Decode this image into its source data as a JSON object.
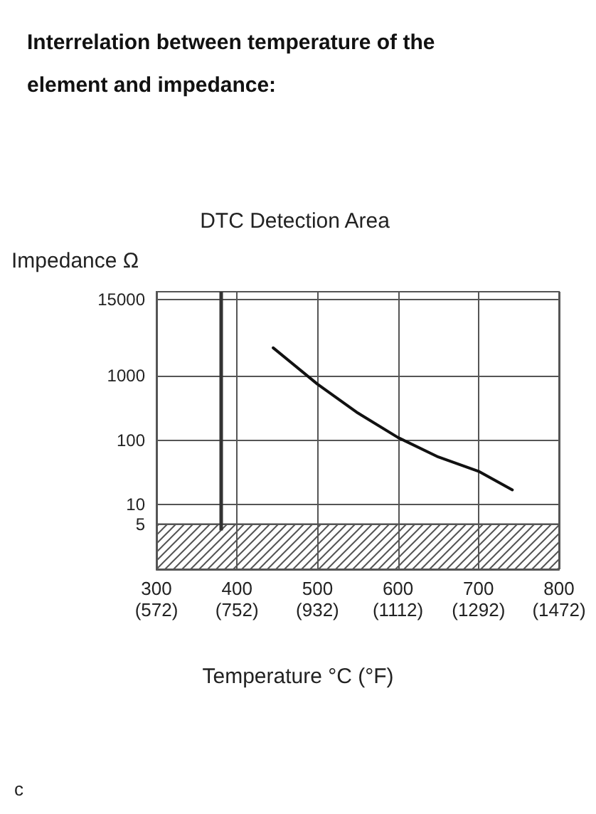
{
  "chart_data": {
    "type": "line",
    "title": "Interrelation between temperature of the element and impedance:",
    "xlabel": "Temperature °C (°F)",
    "ylabel": "Impedance Ω",
    "x": [
      445,
      500,
      550,
      600,
      650,
      700,
      742
    ],
    "series": [
      {
        "color": "#111111",
        "values": [
          2700,
          740,
          265,
          110,
          55,
          33,
          17
        ]
      }
    ],
    "xlim": [
      300,
      800
    ],
    "xticks": [
      300,
      400,
      500,
      600,
      700,
      800
    ],
    "x2lim": [
      572,
      1472
    ],
    "x2ticks": [
      {
        "value": 572,
        "label": "(572)"
      },
      {
        "value": 752,
        "label": "(752)"
      },
      {
        "value": 932,
        "label": "(932)"
      },
      {
        "value": 1112,
        "label": "(1112)"
      },
      {
        "value": 1292,
        "label": "(1292)"
      },
      {
        "value": 1472,
        "label": "(1472)"
      }
    ],
    "ylim": [
      1,
      20000
    ],
    "yticks": [
      5,
      10,
      100,
      1000,
      15000
    ],
    "log": "y",
    "grid": true,
    "marker": "none",
    "line_style": "solid",
    "bands": [
      {
        "axis": "y",
        "from": 1,
        "to": 5,
        "color": "#555555"
      }
    ],
    "ref_lines": [
      {
        "axis": "x",
        "value": 380,
        "label": "DTC Detection Area",
        "color": "#333333"
      }
    ],
    "annotations": [
      "c"
    ]
  }
}
